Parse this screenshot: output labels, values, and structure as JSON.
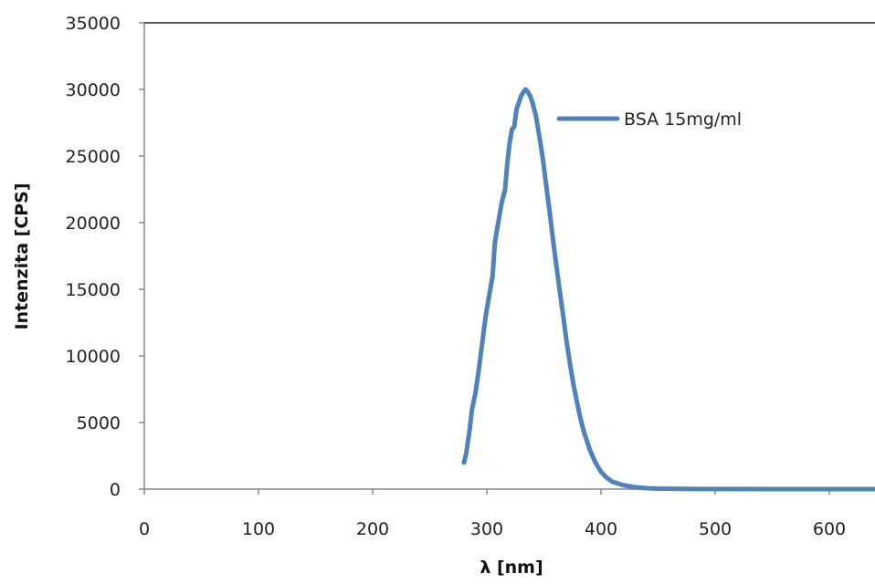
{
  "chart_data": {
    "type": "line",
    "title": "",
    "xlabel": "λ [nm]",
    "ylabel": "Intenzita  [CPS]",
    "xlim": [
      0,
      640
    ],
    "ylim": [
      0,
      35000
    ],
    "xticks": [
      0,
      100,
      200,
      300,
      400,
      500,
      600
    ],
    "yticks": [
      0,
      5000,
      10000,
      15000,
      20000,
      25000,
      30000,
      35000
    ],
    "grid": false,
    "legend_position": "top-right",
    "series": [
      {
        "name": "BSA 15mg/ml",
        "color": "#4f81bd",
        "points": [
          [
            280,
            2000
          ],
          [
            282,
            2700
          ],
          [
            285,
            4500
          ],
          [
            287,
            6000
          ],
          [
            290,
            7200
          ],
          [
            293,
            9000
          ],
          [
            296,
            11000
          ],
          [
            299,
            13000
          ],
          [
            302,
            14500
          ],
          [
            305,
            16000
          ],
          [
            307,
            18500
          ],
          [
            310,
            20000
          ],
          [
            313,
            21500
          ],
          [
            316,
            22500
          ],
          [
            318,
            24500
          ],
          [
            320,
            26000
          ],
          [
            322,
            27000
          ],
          [
            324,
            27200
          ],
          [
            326,
            28500
          ],
          [
            328,
            29000
          ],
          [
            330,
            29500
          ],
          [
            332,
            29800
          ],
          [
            334,
            30000
          ],
          [
            336,
            29800
          ],
          [
            338,
            29500
          ],
          [
            340,
            29000
          ],
          [
            343,
            28000
          ],
          [
            346,
            26500
          ],
          [
            349,
            24800
          ],
          [
            352,
            22800
          ],
          [
            355,
            20800
          ],
          [
            358,
            18700
          ],
          [
            361,
            16700
          ],
          [
            364,
            14800
          ],
          [
            367,
            12900
          ],
          [
            370,
            11000
          ],
          [
            373,
            9300
          ],
          [
            376,
            7800
          ],
          [
            379,
            6500
          ],
          [
            382,
            5300
          ],
          [
            385,
            4300
          ],
          [
            390,
            3000
          ],
          [
            395,
            2000
          ],
          [
            400,
            1300
          ],
          [
            405,
            850
          ],
          [
            410,
            550
          ],
          [
            420,
            280
          ],
          [
            430,
            140
          ],
          [
            440,
            70
          ],
          [
            450,
            35
          ],
          [
            470,
            15
          ],
          [
            500,
            5
          ],
          [
            550,
            0
          ],
          [
            600,
            0
          ],
          [
            640,
            0
          ]
        ]
      }
    ]
  }
}
